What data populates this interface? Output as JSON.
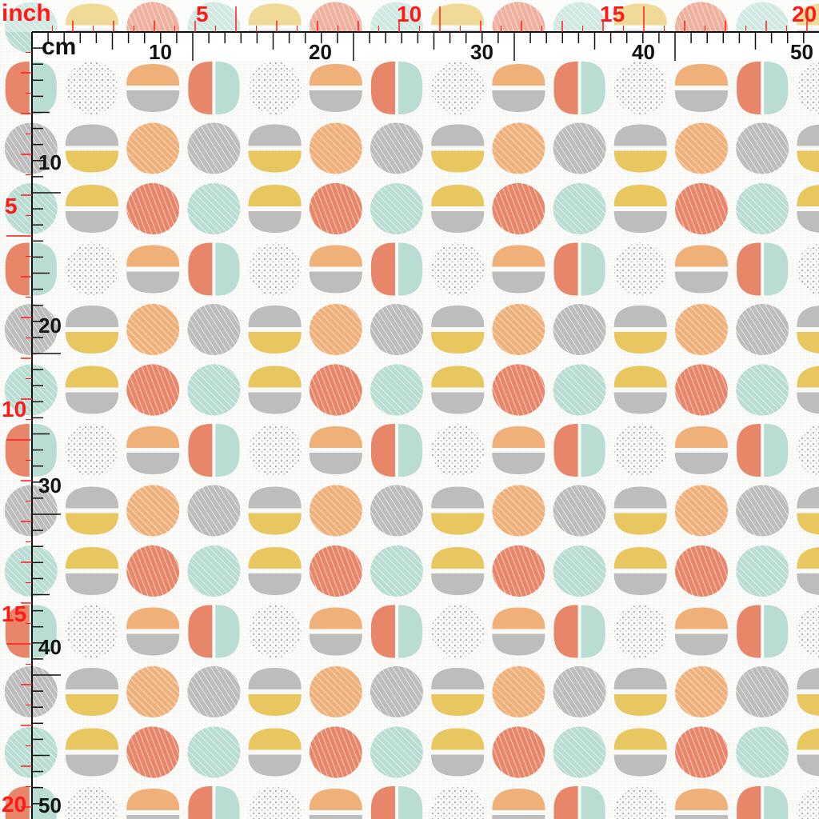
{
  "ruler": {
    "inch_unit": "inch",
    "cm_unit": "cm",
    "inch_top_labels": [
      "5",
      "10",
      "15",
      "20"
    ],
    "cm_top_labels": [
      "10",
      "20",
      "30",
      "40",
      "50"
    ],
    "inch_left_labels": [
      "5",
      "10",
      "15",
      "20"
    ],
    "cm_left_labels": [
      "10",
      "20",
      "30",
      "40",
      "50"
    ]
  },
  "pattern": {
    "name": "",
    "colors": {
      "background": "#fafaf8",
      "orange": "#f0b07a",
      "coral": "#e8866a",
      "mint": "#b9ddd3",
      "gray": "#bdbdbd",
      "mustard": "#e8c660",
      "dot_gray": "#a9a9a9"
    },
    "tile_kinds": [
      "dotted-circle",
      "orange-over-gray",
      "coral-mint-split",
      "gray-over-mustard",
      "striped-orange",
      "striped-gray",
      "mustard-over-gray",
      "striped-coral",
      "striped-mint"
    ]
  },
  "colors": {
    "ruler_red": "#ff1a1a",
    "ruler_black": "#111111",
    "ruler_bg": "#ffffff"
  }
}
